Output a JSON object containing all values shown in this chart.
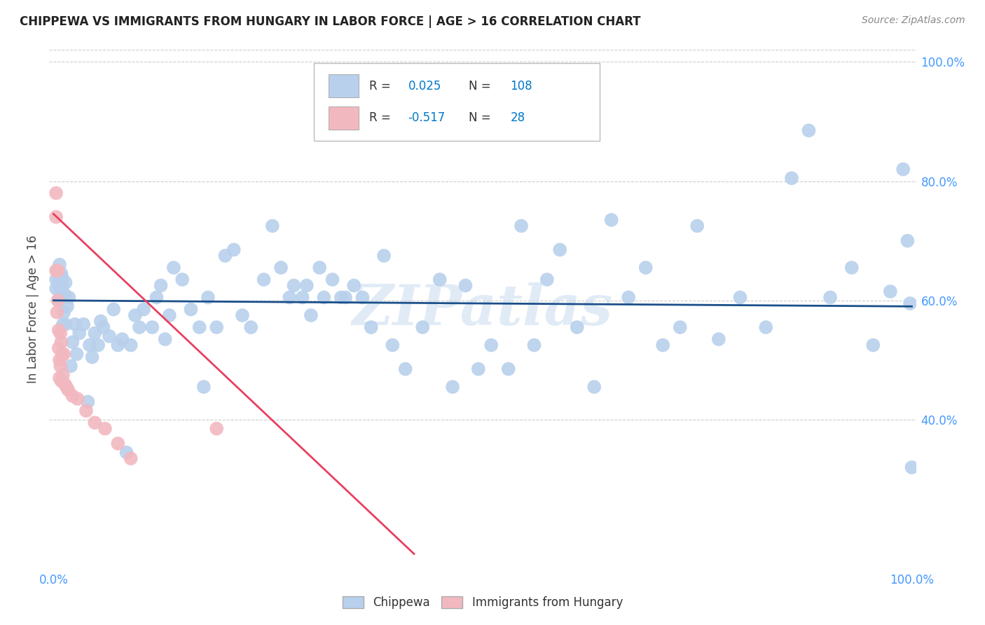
{
  "title": "CHIPPEWA VS IMMIGRANTS FROM HUNGARY IN LABOR FORCE | AGE > 16 CORRELATION CHART",
  "source": "Source: ZipAtlas.com",
  "ylabel_text": "In Labor Force | Age > 16",
  "watermark": "ZIPatlas",
  "chippewa_color": "#b8d0ec",
  "chippewa_edge": "#b8d0ec",
  "hungary_color": "#f2b8c0",
  "hungary_edge": "#f2b8c0",
  "line_chippewa_color": "#1a4f8a",
  "line_hungary_color": "#e84060",
  "background_color": "#ffffff",
  "grid_color": "#cccccc",
  "axis_label_color": "#4499ff",
  "title_color": "#222222",
  "source_color": "#888888",
  "ylabel_color": "#444444",
  "legend_text_color": "#333333",
  "legend_value_color": "#0077cc",
  "xlim": [
    -0.005,
    1.005
  ],
  "ylim": [
    0.15,
    1.02
  ],
  "ytick_positions": [
    0.4,
    0.6,
    0.8,
    1.0
  ],
  "ytick_labels": [
    "40.0%",
    "60.0%",
    "80.0%",
    "100.0%"
  ],
  "chippewa_x": [
    0.003,
    0.003,
    0.004,
    0.006,
    0.006,
    0.007,
    0.007,
    0.008,
    0.009,
    0.009,
    0.01,
    0.01,
    0.011,
    0.012,
    0.013,
    0.014,
    0.014,
    0.016,
    0.018,
    0.02,
    0.022,
    0.025,
    0.027,
    0.03,
    0.035,
    0.04,
    0.042,
    0.045,
    0.048,
    0.052,
    0.055,
    0.058,
    0.065,
    0.07,
    0.075,
    0.08,
    0.085,
    0.09,
    0.095,
    0.1,
    0.105,
    0.115,
    0.12,
    0.125,
    0.13,
    0.135,
    0.14,
    0.15,
    0.16,
    0.17,
    0.175,
    0.18,
    0.19,
    0.2,
    0.21,
    0.22,
    0.23,
    0.245,
    0.255,
    0.265,
    0.275,
    0.28,
    0.29,
    0.295,
    0.3,
    0.31,
    0.315,
    0.325,
    0.335,
    0.34,
    0.35,
    0.36,
    0.37,
    0.385,
    0.395,
    0.41,
    0.43,
    0.45,
    0.465,
    0.48,
    0.495,
    0.51,
    0.53,
    0.545,
    0.56,
    0.575,
    0.59,
    0.61,
    0.63,
    0.65,
    0.67,
    0.69,
    0.71,
    0.73,
    0.75,
    0.775,
    0.8,
    0.83,
    0.86,
    0.88,
    0.905,
    0.93,
    0.955,
    0.975,
    0.99,
    0.995,
    0.998,
    1.0
  ],
  "chippewa_y": [
    0.62,
    0.635,
    0.65,
    0.6,
    0.625,
    0.64,
    0.66,
    0.61,
    0.625,
    0.645,
    0.62,
    0.638,
    0.56,
    0.58,
    0.61,
    0.56,
    0.63,
    0.59,
    0.605,
    0.49,
    0.53,
    0.56,
    0.51,
    0.545,
    0.56,
    0.43,
    0.525,
    0.505,
    0.545,
    0.525,
    0.565,
    0.555,
    0.54,
    0.585,
    0.525,
    0.535,
    0.345,
    0.525,
    0.575,
    0.555,
    0.585,
    0.555,
    0.605,
    0.625,
    0.535,
    0.575,
    0.655,
    0.635,
    0.585,
    0.555,
    0.455,
    0.605,
    0.555,
    0.675,
    0.685,
    0.575,
    0.555,
    0.635,
    0.725,
    0.655,
    0.605,
    0.625,
    0.605,
    0.625,
    0.575,
    0.655,
    0.605,
    0.635,
    0.605,
    0.605,
    0.625,
    0.605,
    0.555,
    0.675,
    0.525,
    0.485,
    0.555,
    0.635,
    0.455,
    0.625,
    0.485,
    0.525,
    0.485,
    0.725,
    0.525,
    0.635,
    0.685,
    0.555,
    0.455,
    0.735,
    0.605,
    0.655,
    0.525,
    0.555,
    0.725,
    0.535,
    0.605,
    0.555,
    0.805,
    0.885,
    0.605,
    0.655,
    0.525,
    0.615,
    0.82,
    0.7,
    0.595,
    0.32
  ],
  "hungary_x": [
    0.003,
    0.003,
    0.003,
    0.004,
    0.005,
    0.005,
    0.006,
    0.006,
    0.007,
    0.007,
    0.008,
    0.008,
    0.009,
    0.009,
    0.01,
    0.011,
    0.012,
    0.013,
    0.015,
    0.017,
    0.022,
    0.028,
    0.038,
    0.048,
    0.06,
    0.075,
    0.09,
    0.19
  ],
  "hungary_y": [
    0.78,
    0.74,
    0.65,
    0.58,
    0.65,
    0.6,
    0.55,
    0.52,
    0.5,
    0.47,
    0.545,
    0.49,
    0.465,
    0.53,
    0.51,
    0.475,
    0.51,
    0.46,
    0.455,
    0.45,
    0.44,
    0.435,
    0.415,
    0.395,
    0.385,
    0.36,
    0.335,
    0.385
  ],
  "chippewa_line_x": [
    0.0,
    1.0
  ],
  "chippewa_line_y": [
    0.6,
    0.59
  ],
  "hungary_line_x": [
    0.0,
    0.42
  ],
  "hungary_line_y": [
    0.745,
    0.175
  ]
}
